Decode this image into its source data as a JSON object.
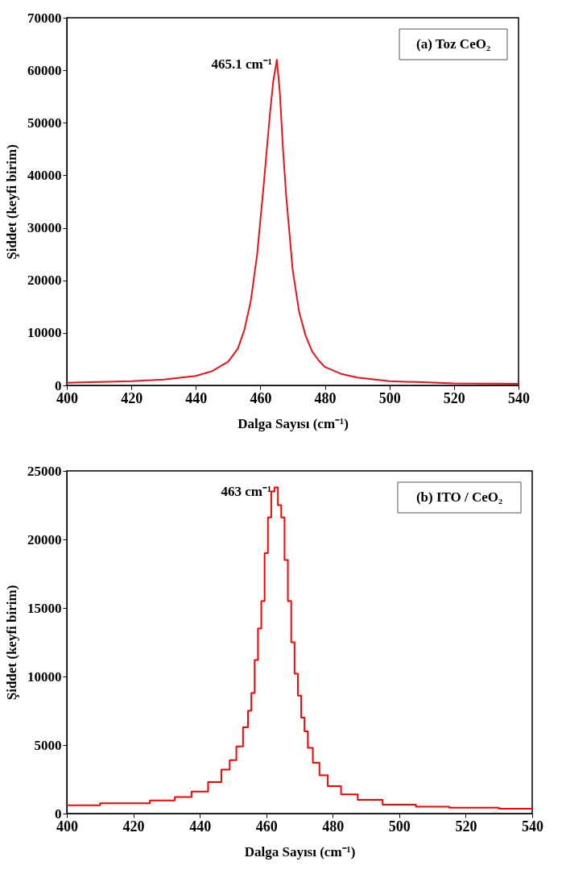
{
  "chart_data": [
    {
      "type": "line",
      "xlabel": "Dalga Sayısı (cm⁻¹)",
      "ylabel": "Şiddet (keyfi birim)",
      "xlim": [
        400,
        540
      ],
      "xticks": [
        400,
        420,
        440,
        460,
        480,
        500,
        520,
        540
      ],
      "ylim": [
        0,
        70000
      ],
      "yticks": [
        0,
        10000,
        20000,
        30000,
        40000,
        50000,
        60000,
        70000
      ],
      "grid": false,
      "annotations": [
        {
          "text": "465.1 cm⁻¹",
          "x": 465.1,
          "y": 62000
        },
        "(a) Toz CeO₂"
      ],
      "series": [
        {
          "color": "#e8141a",
          "x": [
            400,
            420,
            430,
            440,
            445,
            450,
            453,
            455,
            457,
            459,
            461,
            463,
            464,
            465.1,
            466,
            467,
            468,
            470,
            472,
            474,
            476,
            478,
            480,
            485,
            490,
            500,
            510,
            520,
            540
          ],
          "values": [
            500,
            800,
            1100,
            1800,
            2700,
            4500,
            7000,
            10500,
            16000,
            25000,
            38000,
            52000,
            58000,
            62000,
            56000,
            45000,
            36000,
            22000,
            14000,
            9500,
            6500,
            4800,
            3500,
            2200,
            1500,
            800,
            600,
            400,
            300
          ]
        }
      ]
    },
    {
      "type": "step",
      "xlabel": "Dalga Sayısı (cm⁻¹)",
      "ylabel": "Şiddet (keyfi birim)",
      "xlim": [
        400,
        540
      ],
      "xticks": [
        400,
        420,
        440,
        460,
        480,
        500,
        520,
        540
      ],
      "ylim": [
        0,
        25000
      ],
      "yticks": [
        0,
        5000,
        10000,
        15000,
        20000,
        25000
      ],
      "grid": false,
      "annotations": [
        {
          "text": "463 cm⁻¹",
          "x": 463,
          "y": 23800
        },
        "(b) ITO / CeO₂"
      ],
      "series": [
        {
          "color": "#ff0000",
          "x": [
            400,
            420,
            430,
            435,
            440,
            445,
            448,
            450,
            452,
            454,
            455,
            456,
            457,
            458,
            459,
            460,
            461,
            462,
            463,
            464,
            465,
            466,
            467,
            468,
            469,
            470,
            471,
            472,
            473,
            475,
            477,
            480,
            485,
            490,
            500,
            510,
            520,
            540
          ],
          "values": [
            600,
            750,
            950,
            1200,
            1600,
            2300,
            3200,
            3900,
            4900,
            6300,
            7500,
            8800,
            11200,
            13500,
            15500,
            19000,
            21600,
            23500,
            23800,
            22500,
            21600,
            18500,
            15500,
            12500,
            10200,
            8600,
            7000,
            6000,
            4800,
            3700,
            2800,
            2000,
            1400,
            1000,
            650,
            500,
            420,
            350
          ]
        }
      ]
    }
  ]
}
